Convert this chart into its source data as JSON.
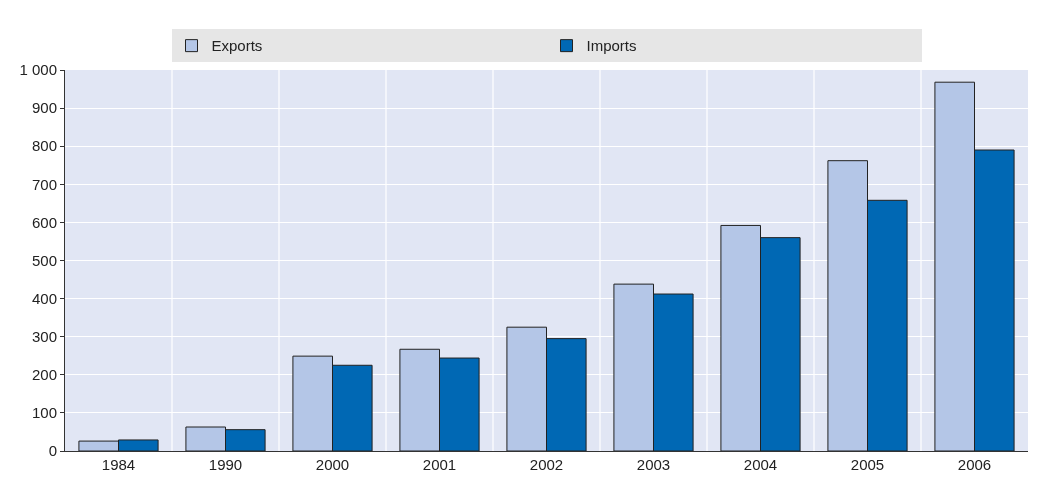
{
  "chart_data": {
    "type": "bar",
    "categories": [
      "1984",
      "1990",
      "2000",
      "2001",
      "2002",
      "2003",
      "2004",
      "2005",
      "2006"
    ],
    "series": [
      {
        "name": "Exports",
        "color": "#b4c6e7",
        "values": [
          26,
          63,
          249,
          267,
          325,
          438,
          592,
          762,
          968
        ]
      },
      {
        "name": "Imports",
        "color": "#0068b4",
        "values": [
          29,
          56,
          225,
          244,
          295,
          412,
          560,
          658,
          790
        ]
      }
    ],
    "ylim": [
      0,
      1000
    ],
    "yticks": [
      0,
      100,
      200,
      300,
      400,
      500,
      600,
      700,
      800,
      900,
      {
        "value": 1000,
        "label": "1 000"
      }
    ],
    "grid": true,
    "legend": "top"
  }
}
